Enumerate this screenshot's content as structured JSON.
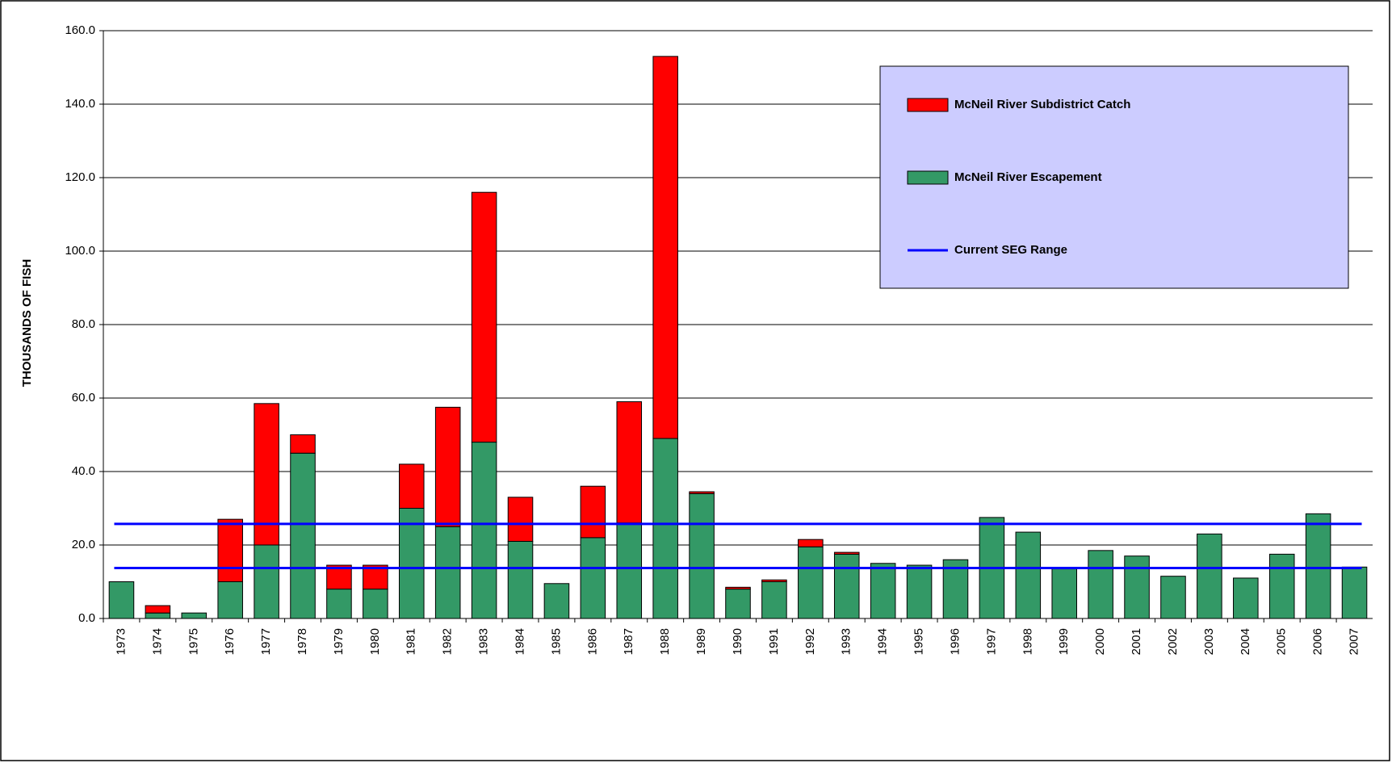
{
  "chart_data": {
    "type": "stacked_bar",
    "y_label": "THOUSANDS OF FISH",
    "categories": [
      "1973",
      "1974",
      "1975",
      "1976",
      "1977",
      "1978",
      "1979",
      "1980",
      "1981",
      "1982",
      "1983",
      "1984",
      "1985",
      "1986",
      "1987",
      "1988",
      "1989",
      "1990",
      "1991",
      "1992",
      "1993",
      "1994",
      "1995",
      "1996",
      "1997",
      "1998",
      "1999",
      "2000",
      "2001",
      "2002",
      "2003",
      "2004",
      "2005",
      "2006",
      "2007"
    ],
    "series": [
      {
        "name": "McNeil River Escapement",
        "color": "#339966",
        "values": [
          10,
          1.5,
          1.5,
          10,
          20,
          45,
          8,
          8,
          30,
          25,
          48,
          21,
          9.5,
          22,
          26,
          49,
          34,
          8,
          10,
          19.5,
          17.5,
          15,
          14.5,
          16,
          27.5,
          23.5,
          13.5,
          18.5,
          17,
          11.5,
          23,
          11,
          17.5,
          28.5,
          14
        ]
      },
      {
        "name": "McNeil River Subdistrict Catch",
        "color": "#ff0000",
        "values": [
          0,
          2,
          0,
          17,
          38.5,
          5,
          6.5,
          6.5,
          12,
          32.5,
          68,
          12,
          0,
          14,
          33,
          104,
          0.5,
          0.5,
          0.5,
          2,
          0.5,
          0,
          0,
          0,
          0,
          0,
          0,
          0,
          0,
          0,
          0,
          0,
          0,
          0,
          0
        ]
      }
    ],
    "reference_lines": {
      "name": "Current SEG Range",
      "color": "#0000ff",
      "values": [
        13.75,
        25.75
      ]
    },
    "ylim": [
      0,
      160
    ],
    "yticks": [
      {
        "value": 0,
        "label": "0.0"
      },
      {
        "value": 20,
        "label": "20.0"
      },
      {
        "value": 40,
        "label": "40.0"
      },
      {
        "value": 60,
        "label": "60.0"
      },
      {
        "value": 80,
        "label": "80.0"
      },
      {
        "value": 100,
        "label": "100.0"
      },
      {
        "value": 120,
        "label": "120.0"
      },
      {
        "value": 140,
        "label": "140.0"
      },
      {
        "value": 160,
        "label": "160.0"
      }
    ],
    "grid": true
  }
}
